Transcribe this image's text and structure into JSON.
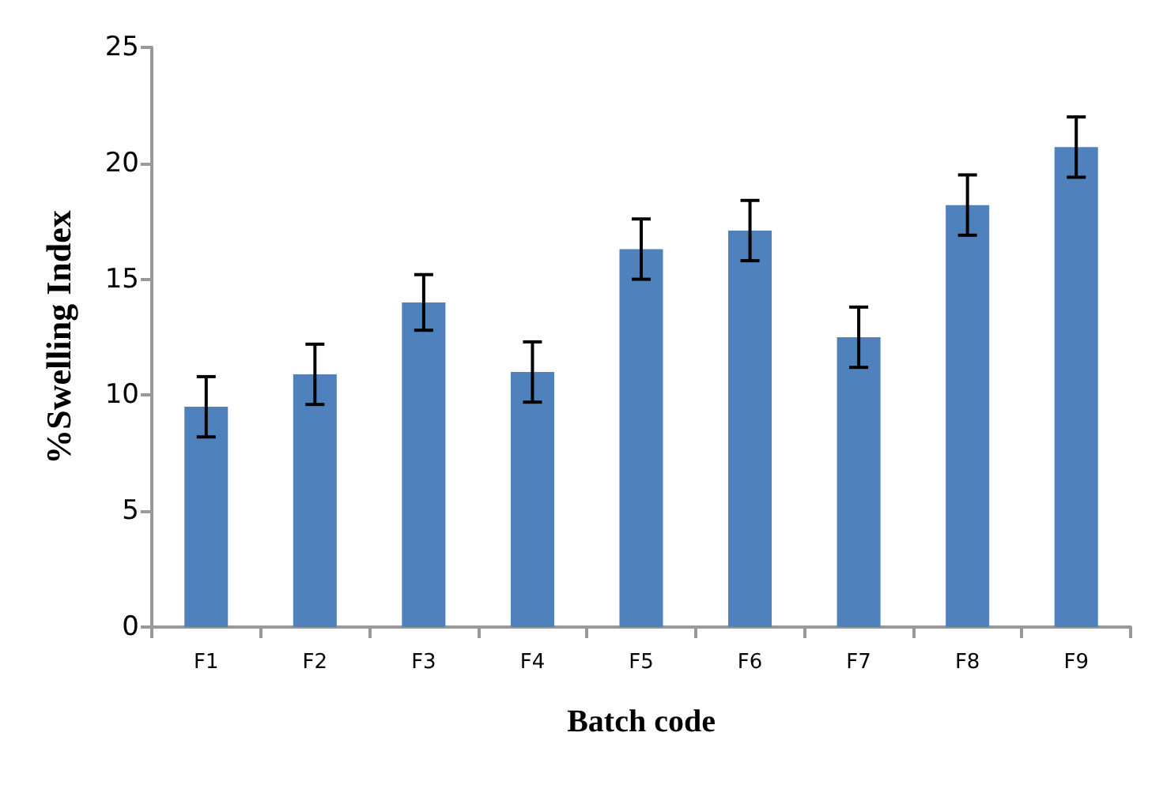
{
  "chart_data": {
    "type": "bar",
    "xlabel": "Batch code",
    "ylabel": "%Swelling Index",
    "categories": [
      "F1",
      "F2",
      "F3",
      "F4",
      "F5",
      "F6",
      "F7",
      "F8",
      "F9"
    ],
    "values": [
      9.5,
      10.9,
      14.0,
      11.0,
      16.3,
      17.1,
      12.5,
      18.2,
      20.7
    ],
    "errors": [
      1.3,
      1.3,
      1.2,
      1.3,
      1.3,
      1.3,
      1.3,
      1.3,
      1.3
    ],
    "color": "#4f81bd",
    "ylim": [
      0,
      25
    ],
    "yticks": [
      0,
      5,
      10,
      15,
      20,
      25
    ],
    "grid": false
  }
}
